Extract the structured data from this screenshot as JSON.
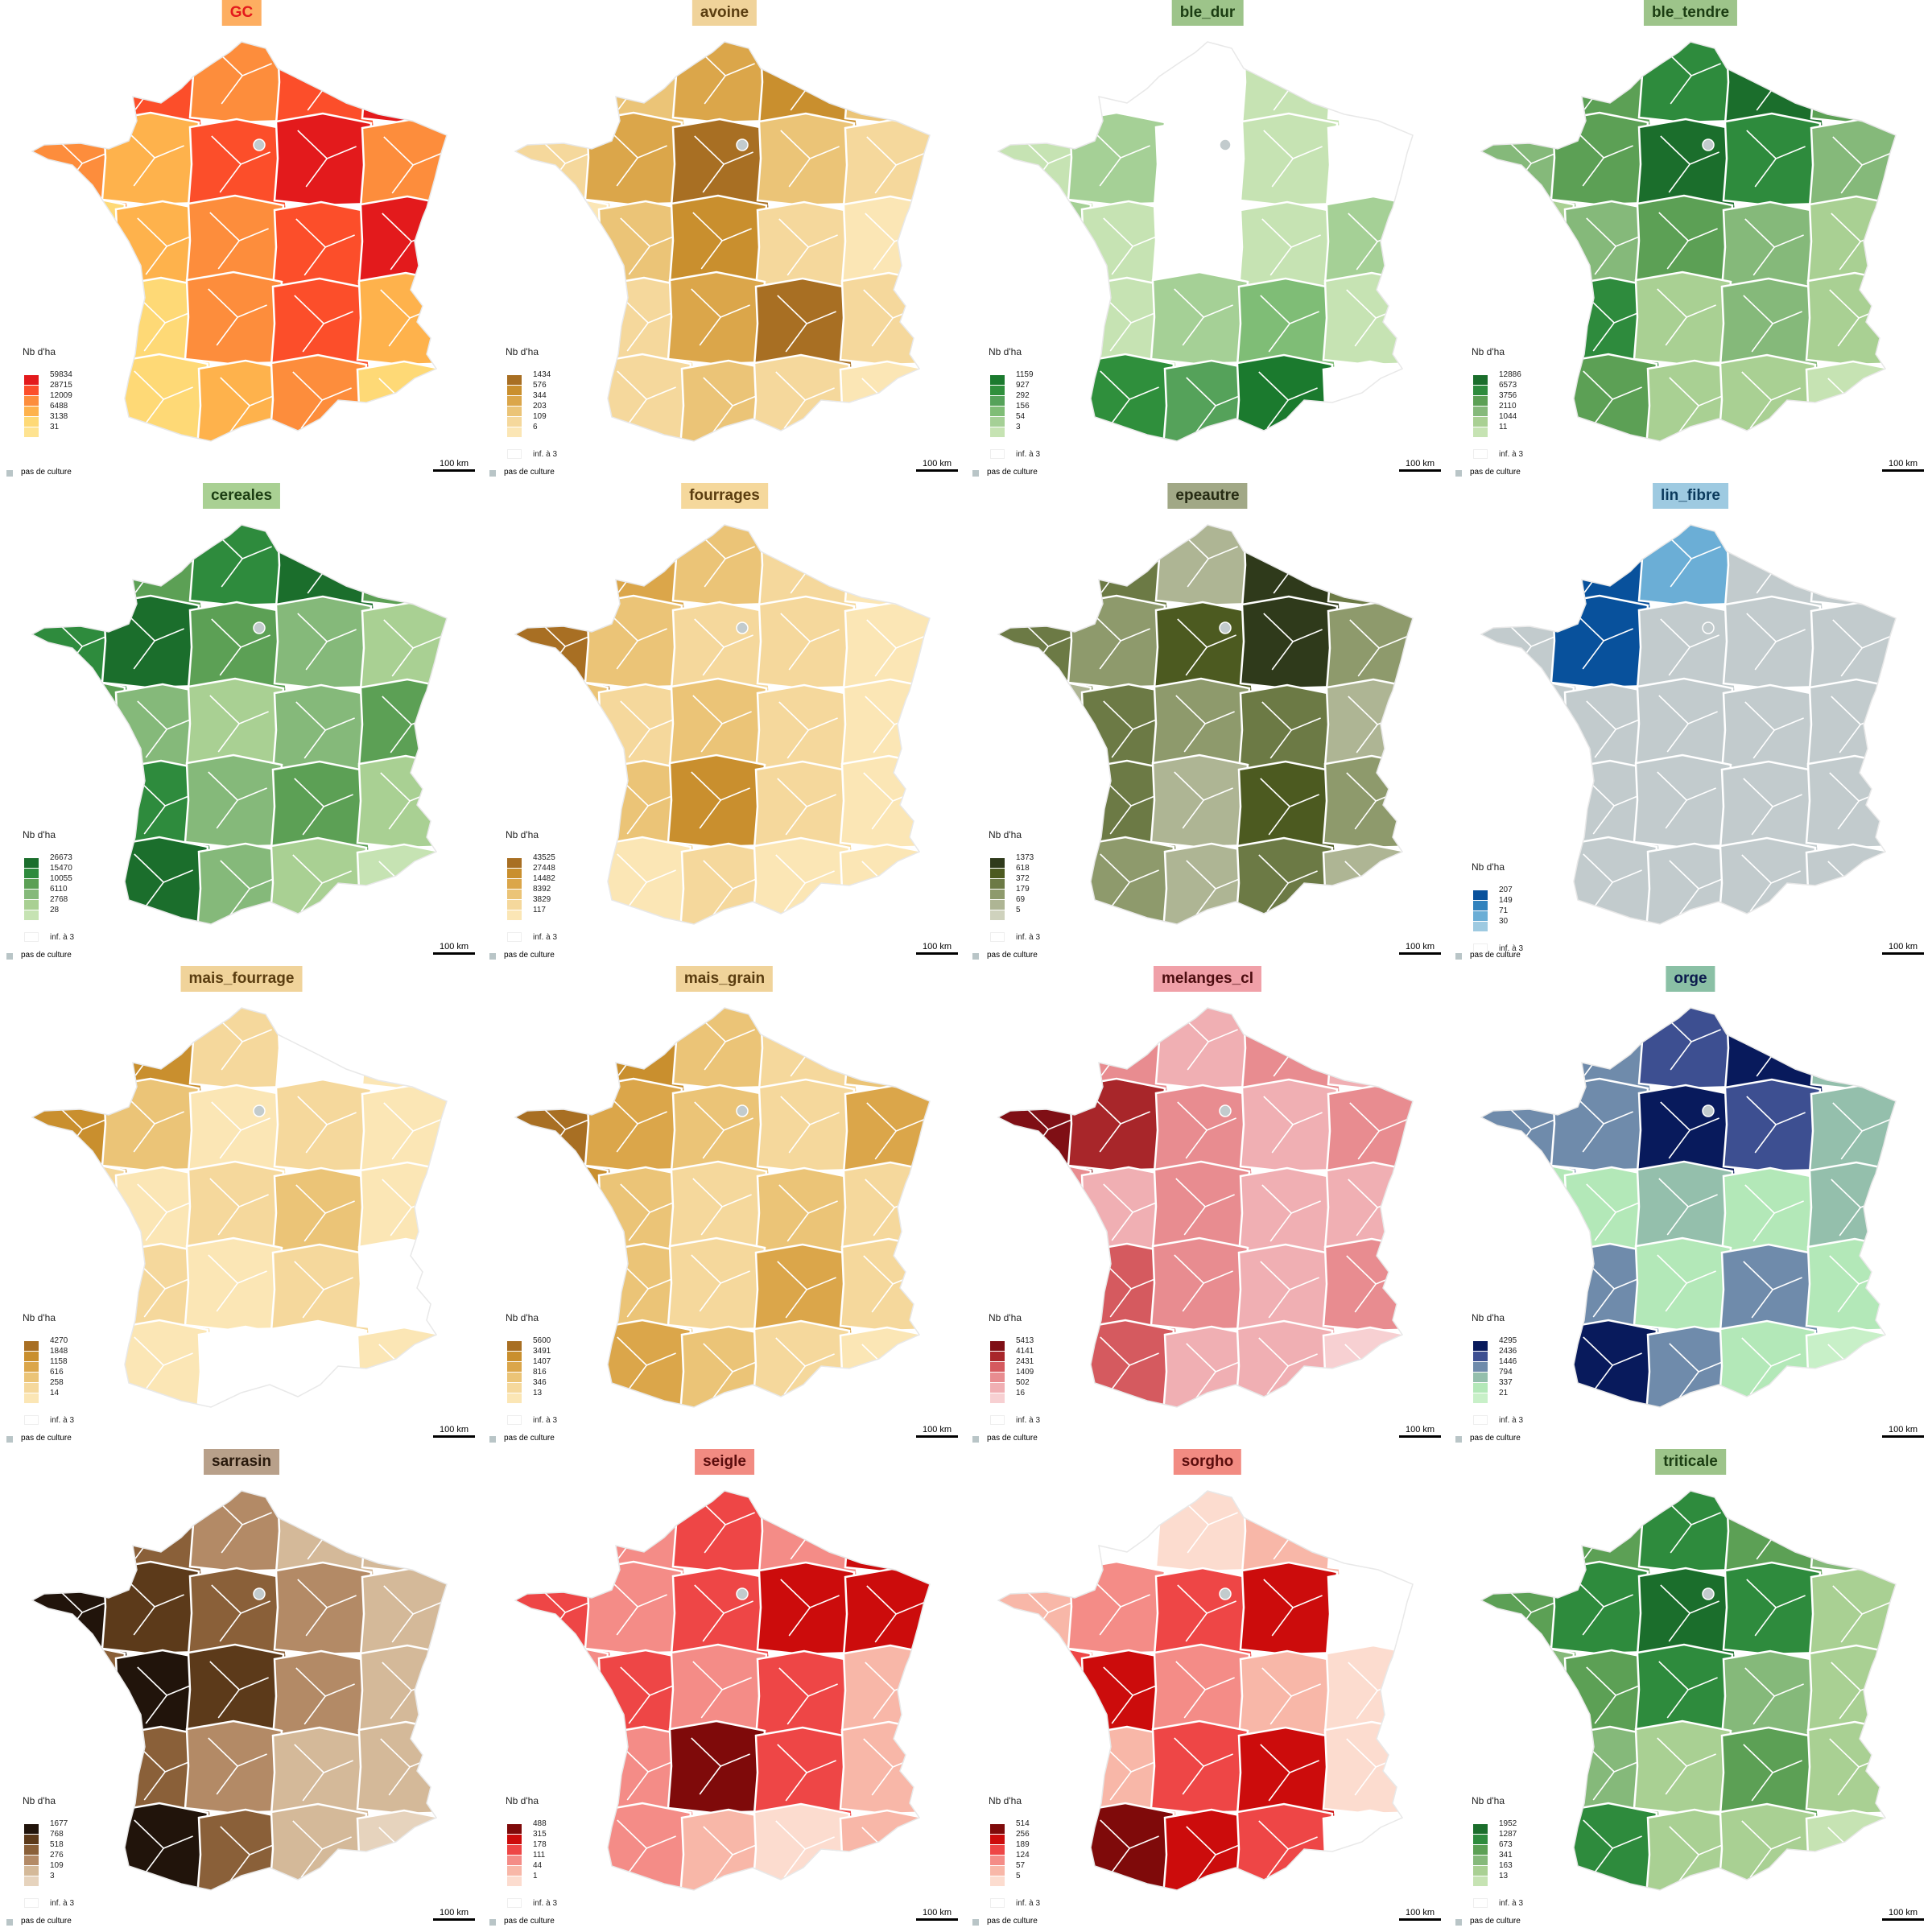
{
  "legend_title": "Nb d'ha",
  "low_label": "inf. à 3",
  "no_crop_label": "pas de culture",
  "no_crop_color": "#c2cbcd",
  "scale_label": "100 km",
  "panels": [
    {
      "title": "GC",
      "title_bg": "#fdae61",
      "title_color": "#e31a1c",
      "values": [
        "59834",
        "28715",
        "12009",
        "6488",
        "3138",
        "31"
      ],
      "colors": [
        "#e31a1c",
        "#fc4e2a",
        "#fd8d3c",
        "#feb24c",
        "#fed976",
        "#fee391"
      ],
      "show_low": false,
      "pattern": [
        0,
        1,
        2,
        1,
        0,
        2,
        3,
        1,
        0,
        2,
        4,
        3,
        2,
        1,
        0,
        3,
        4,
        2,
        1,
        3,
        5,
        4,
        3,
        2,
        4
      ]
    },
    {
      "title": "avoine",
      "title_bg": "#f0d39a",
      "title_color": "#5a3d10",
      "values": [
        "1434",
        "576",
        "344",
        "203",
        "109",
        "6"
      ],
      "colors": [
        "#a86f23",
        "#c98f2e",
        "#dba64a",
        "#ebc477",
        "#f5d89c",
        "#fbe6b5"
      ],
      "show_low": true,
      "pattern": [
        4,
        3,
        2,
        1,
        3,
        4,
        2,
        0,
        3,
        4,
        5,
        3,
        1,
        4,
        5,
        3,
        4,
        2,
        0,
        4,
        5,
        4,
        3,
        4,
        5
      ]
    },
    {
      "title": "ble_dur",
      "title_bg": "#9dc48a",
      "title_color": "#1b3d12",
      "values": [
        "1159",
        "927",
        "292",
        "156",
        "54",
        "3"
      ],
      "colors": [
        "#1b7a2e",
        "#2f8f3c",
        "#55a25a",
        "#7fbd76",
        "#a5d096",
        "#c6e3b3"
      ],
      "show_low": true,
      "pattern": [
        5,
        6,
        6,
        5,
        6,
        5,
        4,
        6,
        5,
        6,
        4,
        5,
        6,
        5,
        4,
        5,
        5,
        4,
        3,
        5,
        6,
        1,
        2,
        0,
        6
      ]
    },
    {
      "title": "ble_tendre",
      "title_bg": "#9dc48a",
      "title_color": "#1b3d12",
      "values": [
        "12886",
        "6573",
        "3756",
        "2110",
        "1044",
        "11"
      ],
      "colors": [
        "#1b6e2c",
        "#2e8b3d",
        "#5ca055",
        "#85b97a",
        "#a9d093",
        "#c6e3b3"
      ],
      "show_low": true,
      "pattern": [
        3,
        2,
        1,
        0,
        2,
        3,
        2,
        0,
        1,
        3,
        4,
        3,
        2,
        3,
        4,
        3,
        1,
        4,
        3,
        4,
        5,
        2,
        4,
        4,
        5
      ]
    },
    {
      "title": "cereales",
      "title_bg": "#a9d093",
      "title_color": "#1b3d12",
      "values": [
        "26673",
        "15470",
        "10055",
        "6110",
        "2768",
        "28"
      ],
      "colors": [
        "#1b6e2c",
        "#2e8b3d",
        "#5ca055",
        "#85b97a",
        "#a9d093",
        "#c6e3b3"
      ],
      "show_low": true,
      "pattern": [
        3,
        2,
        1,
        0,
        2,
        1,
        0,
        2,
        3,
        4,
        2,
        3,
        4,
        3,
        2,
        4,
        1,
        3,
        2,
        4,
        5,
        0,
        3,
        4,
        5
      ]
    },
    {
      "title": "fourrages",
      "title_bg": "#f5d89c",
      "title_color": "#5a3d10",
      "values": [
        "43525",
        "27448",
        "14482",
        "8392",
        "3829",
        "117"
      ],
      "colors": [
        "#a86f23",
        "#c98f2e",
        "#dba64a",
        "#ebc477",
        "#f5d89c",
        "#fbe6b5"
      ],
      "show_low": true,
      "pattern": [
        1,
        2,
        3,
        4,
        5,
        0,
        3,
        4,
        4,
        5,
        3,
        4,
        3,
        4,
        5,
        4,
        3,
        1,
        4,
        5,
        4,
        5,
        4,
        5,
        5
      ]
    },
    {
      "title": "epeautre",
      "title_bg": "#a1a886",
      "title_color": "#262b13",
      "values": [
        "1373",
        "618",
        "372",
        "179",
        "69",
        "5"
      ],
      "colors": [
        "#2f3a1b",
        "#4c5a20",
        "#6c7a45",
        "#8e9a6c",
        "#aeb594",
        "#cfd2bd"
      ],
      "show_low": true,
      "pattern": [
        3,
        2,
        4,
        0,
        2,
        2,
        3,
        1,
        0,
        3,
        4,
        2,
        3,
        2,
        4,
        3,
        2,
        4,
        1,
        3,
        4,
        3,
        4,
        2,
        4
      ]
    },
    {
      "title": "lin_fibre",
      "title_bg": "#9ecae1",
      "title_color": "#0b3a5c",
      "values": [
        "207",
        "149",
        "71",
        "30"
      ],
      "colors": [
        "#08519c",
        "#3182bd",
        "#6baed6",
        "#9ecae1"
      ],
      "show_low": true,
      "pattern": [
        1,
        0,
        2,
        6,
        6,
        6,
        0,
        6,
        6,
        6,
        6,
        6,
        6,
        6,
        6,
        6,
        6,
        6,
        6,
        6,
        6,
        6,
        6,
        6,
        6
      ]
    },
    {
      "title": "mais_fourrage",
      "title_bg": "#f0d39a",
      "title_color": "#5a3d10",
      "values": [
        "4270",
        "1848",
        "1158",
        "616",
        "258",
        "14"
      ],
      "colors": [
        "#a86f23",
        "#c98f2e",
        "#dba64a",
        "#ebc477",
        "#f5d89c",
        "#fbe6b5"
      ],
      "show_low": true,
      "pattern": [
        0,
        1,
        4,
        6,
        5,
        1,
        3,
        5,
        4,
        5,
        4,
        5,
        4,
        3,
        5,
        5,
        4,
        5,
        4,
        6,
        6,
        5,
        6,
        6,
        5
      ]
    },
    {
      "title": "mais_grain",
      "title_bg": "#f0d39a",
      "title_color": "#5a3d10",
      "values": [
        "5600",
        "3491",
        "1407",
        "816",
        "346",
        "13"
      ],
      "colors": [
        "#a86f23",
        "#c98f2e",
        "#dba64a",
        "#ebc477",
        "#f5d89c",
        "#fbe6b5"
      ],
      "show_low": true,
      "pattern": [
        2,
        1,
        3,
        4,
        3,
        0,
        2,
        3,
        4,
        2,
        1,
        3,
        4,
        3,
        4,
        2,
        3,
        4,
        2,
        4,
        1,
        2,
        3,
        4,
        5
      ]
    },
    {
      "title": "melanges_cl",
      "title_bg": "#f0a0a8",
      "title_color": "#4d0d10",
      "values": [
        "5413",
        "4141",
        "2431",
        "1409",
        "502",
        "16"
      ],
      "colors": [
        "#7f0f15",
        "#a8262a",
        "#d55a5f",
        "#e88c90",
        "#f0afb3",
        "#f7d0d2"
      ],
      "show_low": true,
      "pattern": [
        2,
        3,
        4,
        3,
        4,
        0,
        1,
        3,
        4,
        3,
        3,
        4,
        3,
        4,
        4,
        4,
        2,
        3,
        4,
        3,
        5,
        2,
        4,
        4,
        5
      ]
    },
    {
      "title": "orge",
      "title_bg": "#8ac0a5",
      "title_color": "#0b1a4d",
      "values": [
        "4295",
        "2436",
        "1446",
        "794",
        "337",
        "21"
      ],
      "colors": [
        "#081a5c",
        "#3d4f91",
        "#6f8bab",
        "#94bfac",
        "#b3e8b8",
        "#c8f0c8"
      ],
      "show_low": true,
      "pattern": [
        3,
        2,
        1,
        0,
        3,
        2,
        2,
        0,
        1,
        3,
        4,
        4,
        3,
        4,
        3,
        4,
        2,
        4,
        2,
        4,
        5,
        0,
        2,
        4,
        5
      ]
    },
    {
      "title": "sarrasin",
      "title_bg": "#b8a08a",
      "title_color": "#2a1a0d",
      "values": [
        "1677",
        "768",
        "518",
        "276",
        "109",
        "3"
      ],
      "colors": [
        "#21140b",
        "#5c3a1a",
        "#8a6039",
        "#b38a66",
        "#d4b999",
        "#e6d3bd"
      ],
      "show_low": true,
      "pattern": [
        1,
        2,
        3,
        4,
        4,
        0,
        1,
        2,
        3,
        4,
        2,
        0,
        1,
        3,
        4,
        3,
        2,
        3,
        4,
        4,
        3,
        0,
        2,
        4,
        5
      ]
    },
    {
      "title": "seigle",
      "title_bg": "#f28b82",
      "title_color": "#5c0d0d",
      "values": [
        "488",
        "315",
        "178",
        "111",
        "44",
        "1"
      ],
      "colors": [
        "#7f0a0a",
        "#cc0c0c",
        "#ee4646",
        "#f48c87",
        "#f8b7a8",
        "#fcdccf"
      ],
      "show_low": true,
      "pattern": [
        4,
        3,
        2,
        3,
        1,
        2,
        3,
        2,
        1,
        1,
        3,
        2,
        3,
        2,
        4,
        2,
        3,
        0,
        2,
        4,
        4,
        3,
        4,
        5,
        4
      ]
    },
    {
      "title": "sorgho",
      "title_bg": "#f28b82",
      "title_color": "#5c0d0d",
      "values": [
        "514",
        "256",
        "189",
        "124",
        "57",
        "5"
      ],
      "colors": [
        "#7f0a0a",
        "#cc0c0c",
        "#ee4646",
        "#f48c87",
        "#f8b7a8",
        "#fcdccf"
      ],
      "show_low": true,
      "pattern": [
        6,
        6,
        5,
        4,
        6,
        4,
        3,
        2,
        1,
        6,
        2,
        1,
        3,
        4,
        5,
        3,
        4,
        2,
        1,
        5,
        4,
        0,
        1,
        2,
        6
      ]
    },
    {
      "title": "triticale",
      "title_bg": "#9dc48a",
      "title_color": "#1b3d12",
      "values": [
        "1952",
        "1287",
        "673",
        "341",
        "163",
        "13"
      ],
      "colors": [
        "#1b6e2c",
        "#2e8b3d",
        "#5ca055",
        "#85b97a",
        "#a9d093",
        "#c6e3b3"
      ],
      "show_low": true,
      "pattern": [
        3,
        2,
        1,
        2,
        3,
        2,
        1,
        0,
        1,
        4,
        3,
        2,
        1,
        3,
        4,
        4,
        3,
        4,
        2,
        4,
        5,
        1,
        4,
        4,
        5
      ]
    }
  ]
}
